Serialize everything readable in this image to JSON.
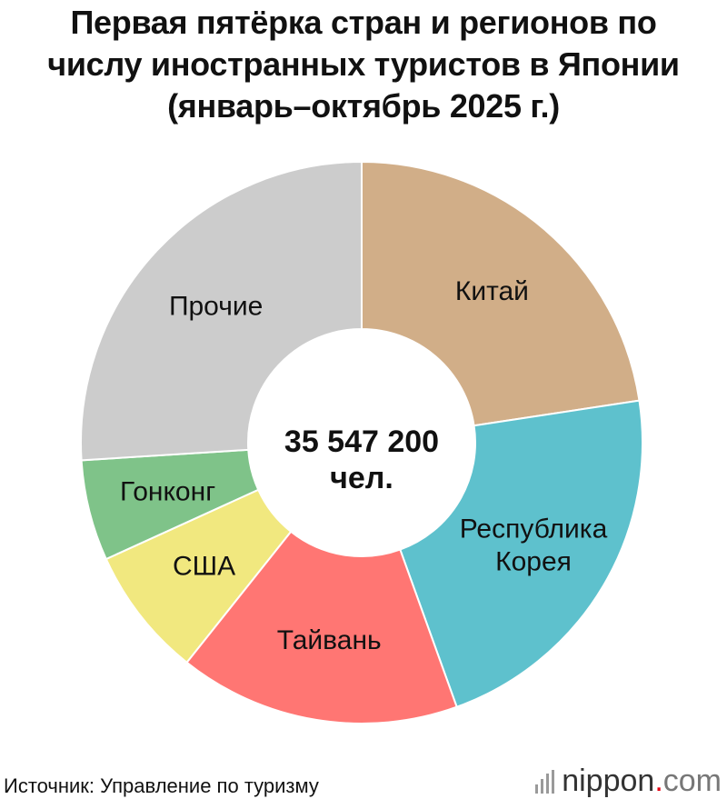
{
  "title_lines": [
    "Первая пятёрка стран и регионов по",
    "числу иностранных туристов в Японии",
    "(январь–октябрь 2025 г.)"
  ],
  "chart_data": {
    "type": "pie",
    "title": "Первая пятёрка стран и регионов по числу иностранных туристов в Японии (январь–октябрь 2025 г.)",
    "total_text": [
      "35 547 200",
      "чел."
    ],
    "slices": [
      {
        "label": [
          "Китай"
        ],
        "share": 0.226,
        "color": "#d1ae88"
      },
      {
        "label": [
          "Республика",
          "Корея"
        ],
        "share": 0.219,
        "color": "#5ec1cd"
      },
      {
        "label": [
          "Тайвань"
        ],
        "share": 0.162,
        "color": "#ff7673"
      },
      {
        "label": [
          "США"
        ],
        "share": 0.075,
        "color": "#f1e87f"
      },
      {
        "label": [
          "Гонконг"
        ],
        "share": 0.058,
        "color": "#7fc389"
      },
      {
        "label": [
          "Прочие"
        ],
        "share": 0.26,
        "color": "#cccccc"
      }
    ]
  },
  "source": "Источник: Управление по туризму",
  "brand": {
    "name": "nippon",
    "dot": ".",
    "suffix": "com"
  }
}
